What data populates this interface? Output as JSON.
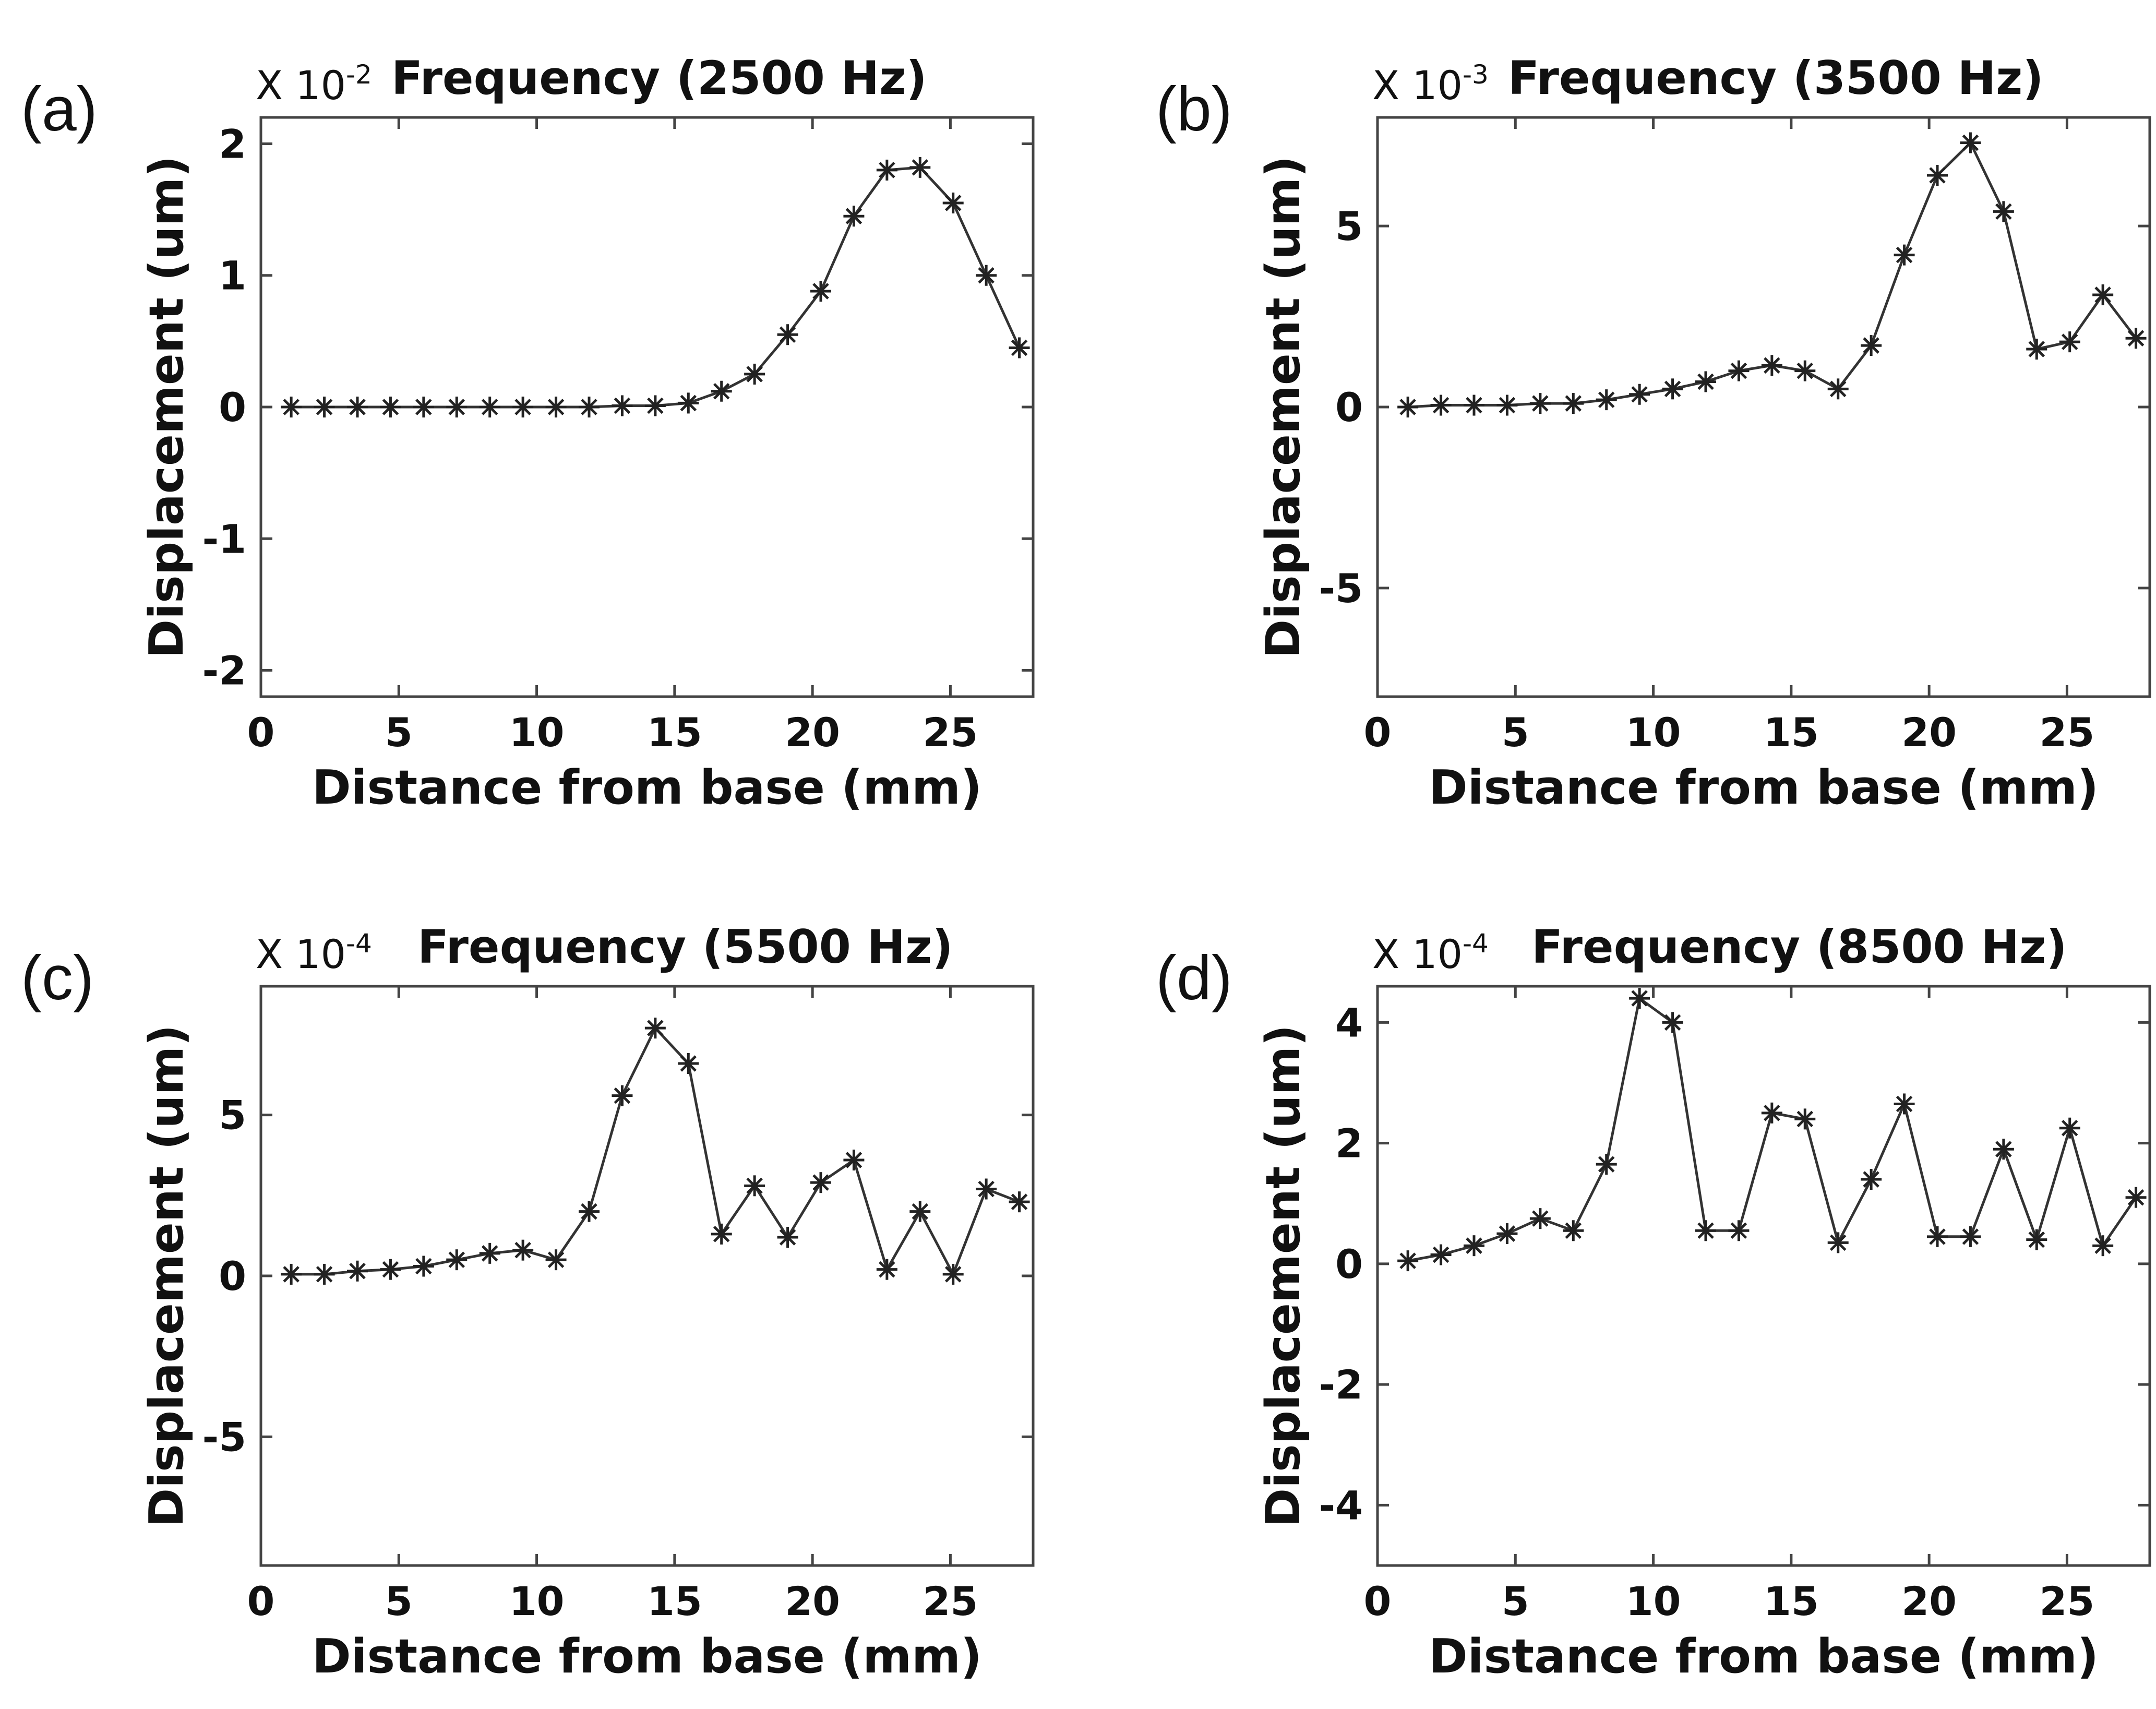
{
  "chart_data": [
    {
      "type": "line",
      "panel_label": "(a)",
      "title": "Frequency (2500 Hz)",
      "exponent": {
        "prefix": "X 10",
        "power": "-2"
      },
      "xlabel": "Distance from base (mm)",
      "ylabel": "Displacement (um)",
      "xlim": [
        0,
        28
      ],
      "ylim": [
        -2.2,
        2.2
      ],
      "xticks": [
        0,
        5,
        10,
        15,
        20,
        25
      ],
      "yticks": [
        -2,
        -1,
        0,
        1,
        2
      ],
      "marker": "asterisk",
      "series": [
        {
          "name": "Displacement",
          "x": [
            1.1,
            2.3,
            3.5,
            4.7,
            5.9,
            7.1,
            8.3,
            9.5,
            10.7,
            11.9,
            13.1,
            14.3,
            15.5,
            16.7,
            17.9,
            19.1,
            20.3,
            21.5,
            22.7,
            23.9,
            25.1,
            26.3,
            27.5
          ],
          "y": [
            0.0,
            0.0,
            0.0,
            0.0,
            0.0,
            0.0,
            0.0,
            0.0,
            0.0,
            0.0,
            0.01,
            0.01,
            0.03,
            0.12,
            0.25,
            0.55,
            0.88,
            1.45,
            1.8,
            1.82,
            1.55,
            1.0,
            0.45
          ]
        }
      ]
    },
    {
      "type": "line",
      "panel_label": "(b)",
      "title": "Frequency (3500 Hz)",
      "exponent": {
        "prefix": "X 10",
        "power": "-3"
      },
      "xlabel": "Distance from base (mm)",
      "ylabel": "Displacement (um)",
      "xlim": [
        0,
        28
      ],
      "ylim": [
        -8,
        8
      ],
      "xticks": [
        0,
        5,
        10,
        15,
        20,
        25
      ],
      "yticks": [
        -5,
        0,
        5
      ],
      "marker": "asterisk",
      "series": [
        {
          "name": "Displacement",
          "x": [
            1.1,
            2.3,
            3.5,
            4.7,
            5.9,
            7.1,
            8.3,
            9.5,
            10.7,
            11.9,
            13.1,
            14.3,
            15.5,
            16.7,
            17.9,
            19.1,
            20.3,
            21.5,
            22.7,
            23.9,
            25.1,
            26.3,
            27.5
          ],
          "y": [
            0.0,
            0.05,
            0.05,
            0.05,
            0.1,
            0.1,
            0.2,
            0.35,
            0.5,
            0.7,
            1.0,
            1.15,
            1.0,
            0.5,
            1.7,
            4.2,
            6.4,
            7.3,
            5.4,
            1.6,
            1.8,
            3.1,
            1.9
          ]
        }
      ]
    },
    {
      "type": "line",
      "panel_label": "(c)",
      "title": "Frequency (5500 Hz)",
      "exponent": {
        "prefix": "X 10",
        "power": "-4"
      },
      "xlabel": "Distance from base (mm)",
      "ylabel": "Displacement (um)",
      "xlim": [
        0,
        28
      ],
      "ylim": [
        -9,
        9
      ],
      "xticks": [
        0,
        5,
        10,
        15,
        20,
        25
      ],
      "yticks": [
        -5,
        0,
        5
      ],
      "marker": "asterisk",
      "series": [
        {
          "name": "Displacement",
          "x": [
            1.1,
            2.3,
            3.5,
            4.7,
            5.9,
            7.1,
            8.3,
            9.5,
            10.7,
            11.9,
            13.1,
            14.3,
            15.5,
            16.7,
            17.9,
            19.1,
            20.3,
            21.5,
            22.7,
            23.9,
            25.1,
            26.3,
            27.5
          ],
          "y": [
            0.05,
            0.05,
            0.15,
            0.2,
            0.3,
            0.5,
            0.7,
            0.8,
            0.5,
            2.0,
            5.6,
            7.7,
            6.6,
            1.3,
            2.8,
            1.2,
            2.9,
            3.6,
            0.2,
            2.0,
            0.05,
            2.7,
            2.3
          ]
        }
      ]
    },
    {
      "type": "line",
      "panel_label": "(d)",
      "title": "Frequency (8500 Hz)",
      "exponent": {
        "prefix": "X 10",
        "power": "-4"
      },
      "xlabel": "Distance from base (mm)",
      "ylabel": "Displacement (um)",
      "xlim": [
        0,
        28
      ],
      "ylim": [
        -5,
        4.6
      ],
      "xticks": [
        0,
        5,
        10,
        15,
        20,
        25
      ],
      "yticks": [
        -4,
        -2,
        0,
        2,
        4
      ],
      "marker": "asterisk",
      "series": [
        {
          "name": "Displacement",
          "x": [
            1.1,
            2.3,
            3.5,
            4.7,
            5.9,
            7.1,
            8.3,
            9.5,
            10.7,
            11.9,
            13.1,
            14.3,
            15.5,
            16.7,
            17.9,
            19.1,
            20.3,
            21.5,
            22.7,
            23.9,
            25.1,
            26.3,
            27.5
          ],
          "y": [
            0.05,
            0.15,
            0.3,
            0.5,
            0.75,
            0.55,
            1.65,
            4.4,
            4.0,
            0.55,
            0.55,
            2.5,
            2.4,
            0.35,
            1.4,
            2.65,
            0.45,
            0.45,
            1.9,
            0.4,
            2.25,
            0.3,
            1.1
          ]
        }
      ]
    }
  ]
}
